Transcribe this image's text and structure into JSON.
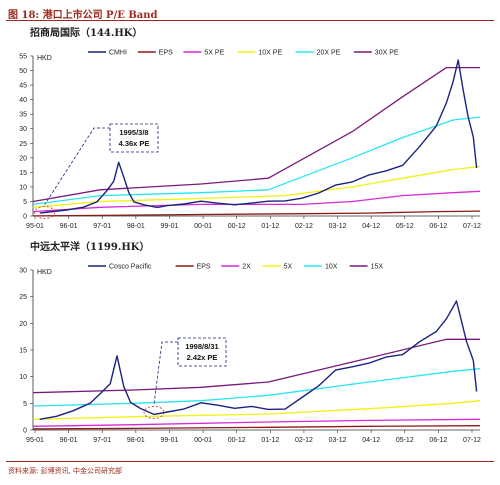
{
  "header": {
    "title": "图 18:  港口上市公司 P/E Band"
  },
  "footer": {
    "source": "资料来源:  彭博资讯,  中金公司研究部"
  },
  "charts": [
    {
      "subtitle": "招商局国际（144.HK）",
      "unit": "HKD",
      "annotation": {
        "line1": "1995/3/8",
        "line2": "4.36x PE"
      },
      "colors": {
        "price": "#1a237e",
        "eps": "#8b1a1a",
        "b1": "#d62ad6",
        "b2": "#f2f20f",
        "b3": "#26e6f2",
        "b4": "#7b1a7b"
      },
      "chart_data": {
        "type": "line",
        "ylabel": "HKD",
        "ylim": [
          0,
          55
        ],
        "yticks": [
          0,
          5,
          10,
          15,
          20,
          25,
          30,
          35,
          40,
          45,
          50,
          55
        ],
        "xlim": [
          1995.0,
          2008.3
        ],
        "xticks": [
          "95-01",
          "96-01",
          "97-01",
          "98-01",
          "99-01",
          "00-01",
          "00-12",
          "01-12",
          "02-12",
          "03-12",
          "04-12",
          "05-12",
          "06-12",
          "07-12"
        ],
        "series": [
          {
            "name": "CMHI",
            "x": [
              1995.2,
              1995.6,
              1996.0,
              1996.5,
              1996.9,
              1997.2,
              1997.4,
              1997.55,
              1997.7,
              1997.85,
              1998.0,
              1998.3,
              1998.7,
              1999.0,
              1999.5,
              2000.0,
              2000.5,
              2001.0,
              2001.5,
              2002.0,
              2002.5,
              2003.0,
              2003.5,
              2004.0,
              2004.5,
              2005.0,
              2005.5,
              2006.0,
              2006.5,
              2007.0,
              2007.3,
              2007.5,
              2007.65,
              2007.8,
              2007.95,
              2008.1,
              2008.2
            ],
            "values": [
              1,
              1.5,
              2,
              3,
              5,
              9,
              12,
              18,
              13,
              8,
              5,
              4,
              3,
              3.5,
              4,
              5,
              4.5,
              4,
              4.5,
              5,
              5,
              6,
              8,
              11,
              12,
              14,
              15,
              17,
              24,
              32,
              40,
              46,
              52,
              42,
              34,
              28,
              17
            ]
          },
          {
            "name": "EPS",
            "x": [
              1995.0,
              1997.0,
              2000.0,
              2003.0,
              2005.0,
              2007.0,
              2008.3
            ],
            "values": [
              0.05,
              0.2,
              0.5,
              0.8,
              1,
              1.5,
              1.7
            ]
          },
          {
            "name": "5X PE",
            "x": [
              1995.0,
              1997.0,
              2000.0,
              2003.0,
              2004.5,
              2006.0,
              2007.5,
              2008.3
            ],
            "values": [
              1.5,
              3,
              4,
              4,
              5,
              7,
              8,
              8.5
            ]
          },
          {
            "name": "10X PE",
            "x": [
              1995.0,
              1997.0,
              2000.0,
              2002.5,
              2004.5,
              2006.0,
              2007.5,
              2008.3
            ],
            "values": [
              3,
              5,
              6,
              7,
              10,
              13,
              16,
              17
            ]
          },
          {
            "name": "20X PE",
            "x": [
              1995.0,
              1997.0,
              2000.0,
              2002.0,
              2004.5,
              2006.0,
              2007.5,
              2008.3
            ],
            "values": [
              4,
              7,
              8,
              9,
              20,
              27,
              33,
              34
            ]
          },
          {
            "name": "30X PE",
            "x": [
              1995.0,
              1997.0,
              2000.0,
              2002.0,
              2004.5,
              2006.0,
              2007.3,
              2008.3
            ],
            "values": [
              5,
              9,
              11,
              13,
              29,
              41,
              51,
              51
            ]
          }
        ]
      }
    },
    {
      "subtitle": "中远太平洋（1199.HK）",
      "unit": "HKD",
      "annotation": {
        "line1": "1998/8/31",
        "line2": "2.42x PE"
      },
      "colors": {
        "price": "#1a237e",
        "eps": "#8b1a1a",
        "b1": "#d62ad6",
        "b2": "#f2f20f",
        "b3": "#26e6f2",
        "b4": "#7b1a7b"
      },
      "chart_data": {
        "type": "line",
        "ylabel": "HKD",
        "ylim": [
          0,
          30
        ],
        "yticks": [
          0,
          5,
          10,
          15,
          20,
          25,
          30
        ],
        "xlim": [
          1995.0,
          2008.3
        ],
        "xticks": [
          "95-01",
          "96-01",
          "97-01",
          "98-01",
          "99-01",
          "00-01",
          "00-12",
          "01-12",
          "02-12",
          "03-12",
          "04-12",
          "05-12",
          "06-12",
          "07-12"
        ],
        "series": [
          {
            "name": "Cosco Pacific",
            "x": [
              1995.2,
              1995.7,
              1996.2,
              1996.7,
              1997.0,
              1997.3,
              1997.5,
              1997.7,
              1997.9,
              1998.2,
              1998.6,
              1999.0,
              1999.5,
              2000.0,
              2000.5,
              2001.0,
              2001.5,
              2002.0,
              2002.5,
              2003.0,
              2003.5,
              2004.0,
              2004.5,
              2005.0,
              2005.5,
              2006.0,
              2006.5,
              2007.0,
              2007.3,
              2007.6,
              2007.9,
              2008.1,
              2008.2
            ],
            "values": [
              2,
              2.5,
              3.5,
              5,
              7,
              9,
              14,
              8,
              5,
              4,
              3,
              3.5,
              4,
              5,
              4.5,
              4,
              4.5,
              4,
              4,
              6,
              8,
              11,
              12,
              13,
              14,
              14,
              16,
              18,
              21,
              25,
              17,
              13,
              7
            ]
          },
          {
            "name": "EPS",
            "x": [
              1995.0,
              1998.0,
              2002.0,
              2005.0,
              2008.3
            ],
            "values": [
              0.2,
              0.3,
              0.5,
              0.7,
              0.8
            ]
          },
          {
            "name": "2X",
            "x": [
              1995.0,
              1998.0,
              2002.0,
              2005.0,
              2008.3
            ],
            "values": [
              0.7,
              1,
              1.5,
              1.8,
              2
            ]
          },
          {
            "name": "5X",
            "x": [
              1995.0,
              1998.0,
              2002.0,
              2005.0,
              2007.5,
              2008.3
            ],
            "values": [
              2,
              2.5,
              3,
              4,
              5,
              5.5
            ]
          },
          {
            "name": "10X",
            "x": [
              1995.0,
              1998.0,
              2000.0,
              2002.0,
              2005.0,
              2007.5,
              2008.3
            ],
            "values": [
              4.5,
              5,
              5.5,
              6.5,
              9,
              11,
              11.5
            ]
          },
          {
            "name": "15X",
            "x": [
              1995.0,
              1998.0,
              2000.0,
              2002.0,
              2005.0,
              2007.3,
              2008.3
            ],
            "values": [
              7,
              7.5,
              8,
              9,
              13.5,
              17,
              17
            ]
          }
        ]
      }
    }
  ]
}
